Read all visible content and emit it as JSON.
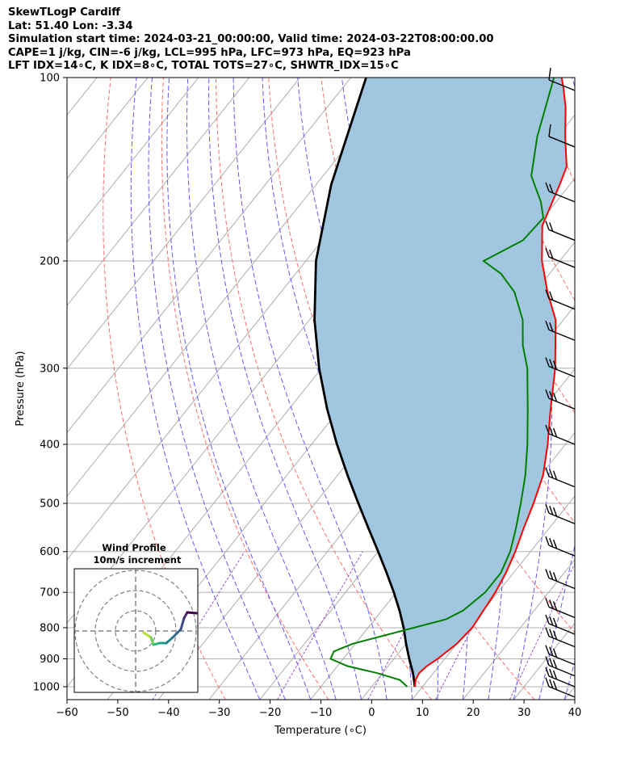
{
  "header": {
    "line1": "SkewTLogP Cardiff",
    "line2": "Lat: 51.40   Lon: -3.34",
    "line3": "Simulation start time: 2024-03-21_00:00:00, Valid time: 2024-03-22T08:00:00.00",
    "line4": "CAPE=1 j/kg, CIN=-6 j/kg, LCL=995 hPa, LFC=973 hPa, EQ=923 hPa",
    "line5": "LFT IDX=14∘C, K IDX=8∘C, TOTAL TOTS=27∘C, SHWTR_IDX=15∘C"
  },
  "chart_data": {
    "type": "line",
    "xlabel": "Temperature (∘C)",
    "ylabel": "Pressure (hPa)",
    "xlim": [
      -60,
      40
    ],
    "ylim": [
      1050,
      100
    ],
    "yscale": "log",
    "skew": true,
    "grid": true,
    "x_ticks": [
      -60,
      -50,
      -40,
      -30,
      -20,
      -10,
      0,
      10,
      20,
      30,
      40
    ],
    "x_tick_labels": [
      "−60",
      "−50",
      "−40",
      "−30",
      "−20",
      "−10",
      "0",
      "10",
      "20",
      "30",
      "40"
    ],
    "y_ticks": [
      1000,
      900,
      800,
      700,
      600,
      500,
      400,
      300,
      200,
      100
    ],
    "y_tick_labels": [
      "1000",
      "900",
      "800",
      "700",
      "600",
      "500",
      "400",
      "300",
      "200",
      "100"
    ],
    "series": [
      {
        "role": "temperature",
        "color": "#ff0000",
        "points": [
          [
            1000,
            8.5
          ],
          [
            975,
            7.6
          ],
          [
            950,
            7.2
          ],
          [
            925,
            7.6
          ],
          [
            900,
            8.6
          ],
          [
            850,
            10.0
          ],
          [
            800,
            10.5
          ],
          [
            750,
            10.0
          ],
          [
            700,
            9.5
          ],
          [
            650,
            8.5
          ],
          [
            600,
            7.0
          ],
          [
            550,
            5.0
          ],
          [
            500,
            3.0
          ],
          [
            450,
            0.5
          ],
          [
            400,
            -3.5
          ],
          [
            350,
            -8.5
          ],
          [
            300,
            -14.0
          ],
          [
            250,
            -21.5
          ],
          [
            225,
            -27.5
          ],
          [
            200,
            -33.5
          ],
          [
            175,
            -39.0
          ],
          [
            150,
            -42.0
          ],
          [
            140,
            -43.5
          ],
          [
            125,
            -48.5
          ],
          [
            112,
            -53.0
          ],
          [
            104,
            -56.5
          ],
          [
            100,
            -58.5
          ]
        ]
      },
      {
        "role": "dewpoint",
        "color": "#008000",
        "points": [
          [
            1000,
            7.0
          ],
          [
            975,
            4.5
          ],
          [
            950,
            -1.0
          ],
          [
            925,
            -8.0
          ],
          [
            900,
            -12.5
          ],
          [
            875,
            -13.0
          ],
          [
            850,
            -10.5
          ],
          [
            800,
            -1.0
          ],
          [
            775,
            4.0
          ],
          [
            750,
            6.0
          ],
          [
            700,
            7.5
          ],
          [
            650,
            7.5
          ],
          [
            600,
            6.0
          ],
          [
            550,
            3.5
          ],
          [
            500,
            0.5
          ],
          [
            450,
            -3.0
          ],
          [
            400,
            -7.5
          ],
          [
            350,
            -13.0
          ],
          [
            300,
            -19.5
          ],
          [
            275,
            -24.0
          ],
          [
            250,
            -28.0
          ],
          [
            225,
            -34.0
          ],
          [
            210,
            -39.5
          ],
          [
            200,
            -45.0
          ],
          [
            185,
            -40.5
          ],
          [
            170,
            -40.0
          ],
          [
            160,
            -43.0
          ],
          [
            145,
            -49.0
          ],
          [
            125,
            -54.0
          ],
          [
            100,
            -60.0
          ]
        ]
      },
      {
        "role": "parcel",
        "color": "#000000",
        "points": [
          [
            1000,
            8.5
          ],
          [
            950,
            6.0
          ],
          [
            900,
            3.0
          ],
          [
            850,
            0.0
          ],
          [
            800,
            -3.0
          ],
          [
            750,
            -6.5
          ],
          [
            700,
            -10.5
          ],
          [
            650,
            -15.0
          ],
          [
            600,
            -20.0
          ],
          [
            550,
            -25.5
          ],
          [
            500,
            -31.5
          ],
          [
            450,
            -38.0
          ],
          [
            400,
            -45.0
          ],
          [
            350,
            -52.5
          ],
          [
            300,
            -60.5
          ],
          [
            250,
            -69.0
          ],
          [
            200,
            -78.0
          ],
          [
            150,
            -87.0
          ],
          [
            100,
            -97.0
          ]
        ]
      }
    ],
    "shaded_region": {
      "description": "between temperature and parcel curves",
      "color": "#a0c6e0"
    },
    "wind_barbs_pressures": [
      105,
      130,
      160,
      185,
      205,
      240,
      270,
      310,
      350,
      400,
      470,
      540,
      610,
      690,
      770,
      820,
      860,
      920,
      960,
      1000,
      1040
    ],
    "inset": {
      "title": "Wind Profile",
      "subtitle": "10m/s increment",
      "type": "hodograph",
      "rings": 3
    }
  }
}
